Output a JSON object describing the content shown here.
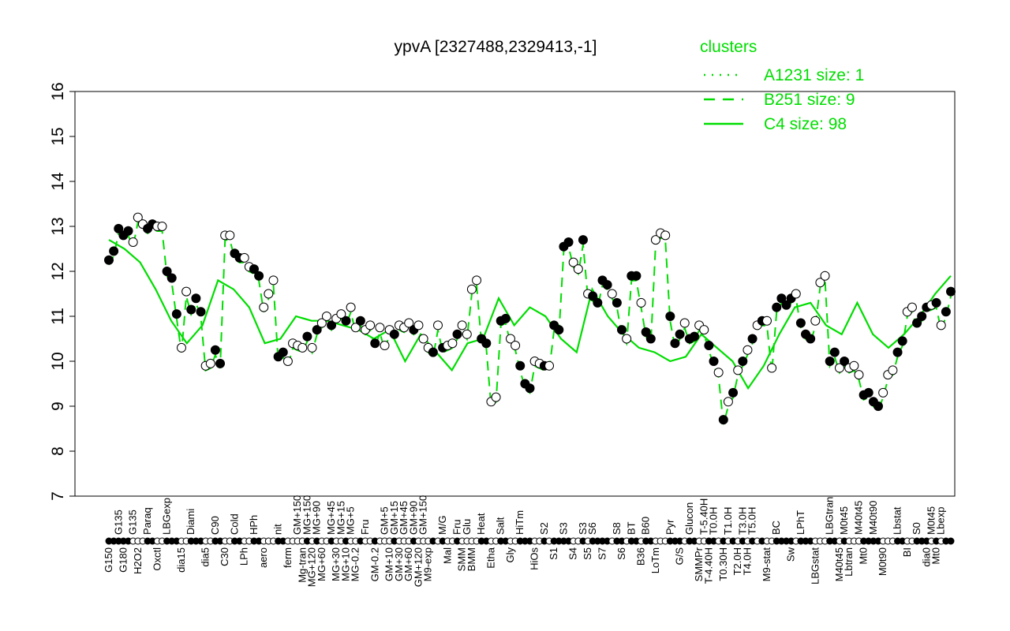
{
  "chart_data": {
    "type": "scatter",
    "title": "ypvA [2327488,2329413,-1]",
    "xlabel": "",
    "ylabel": "",
    "ylim": [
      7,
      16
    ],
    "yticks": [
      7,
      8,
      9,
      10,
      11,
      12,
      13,
      14,
      15,
      16
    ],
    "grid": false,
    "legend": {
      "title": "clusters",
      "placement": "top-right",
      "color": "#00dd00",
      "entries": [
        {
          "label": "A1231 size: 1",
          "style": "dotted"
        },
        {
          "label": "B251 size: 9",
          "style": "dashed"
        },
        {
          "label": "C4 size: 98",
          "style": "solid"
        }
      ]
    },
    "colors": {
      "points": "#000000",
      "lines": "#00dd00"
    },
    "points": [
      [
        "G150",
        12.25,
        0
      ],
      [
        "G150",
        12.45,
        0
      ],
      [
        "G135",
        12.95,
        0
      ],
      [
        "G180",
        12.8,
        0
      ],
      [
        "G180",
        12.9,
        0
      ],
      [
        "G135",
        12.65,
        1
      ],
      [
        "H2O2",
        13.2,
        1
      ],
      [
        "H2O2",
        13.05,
        1
      ],
      [
        "Paraq",
        12.95,
        0
      ],
      [
        "Paraq",
        13.05,
        0
      ],
      [
        "Oxctl",
        13.0,
        1
      ],
      [
        "Oxctl",
        13.0,
        1
      ],
      [
        "LBGexp",
        12.0,
        0
      ],
      [
        "LBGexp",
        11.85,
        0
      ],
      [
        "LBGexp",
        11.05,
        0
      ],
      [
        "dia15",
        10.3,
        1
      ],
      [
        "dia15",
        11.55,
        1
      ],
      [
        "Diami",
        11.15,
        0
      ],
      [
        "Diami",
        11.4,
        0
      ],
      [
        "Diami",
        11.1,
        0
      ],
      [
        "dia5",
        9.9,
        1
      ],
      [
        "dia5",
        9.95,
        1
      ],
      [
        "C90",
        10.25,
        0
      ],
      [
        "C90",
        9.95,
        0
      ],
      [
        "C30",
        12.8,
        1
      ],
      [
        "C30",
        12.8,
        1
      ],
      [
        "Cold",
        12.4,
        0
      ],
      [
        "Cold",
        12.3,
        0
      ],
      [
        "LPh",
        12.3,
        1
      ],
      [
        "LPh",
        12.1,
        1
      ],
      [
        "HPh",
        12.05,
        0
      ],
      [
        "HPh",
        11.9,
        0
      ],
      [
        "aero",
        11.2,
        1
      ],
      [
        "aero",
        11.5,
        1
      ],
      [
        "aero",
        11.8,
        1
      ],
      [
        "nit",
        10.1,
        0
      ],
      [
        "nit",
        10.2,
        0
      ],
      [
        "ferm",
        10.0,
        1
      ],
      [
        "ferm",
        10.4,
        1
      ],
      [
        "GM+150",
        10.35,
        1
      ],
      [
        "Mg-tran",
        10.3,
        1
      ],
      [
        "MG+150",
        10.55,
        0
      ],
      [
        "MG+120",
        10.3,
        1
      ],
      [
        "MG+90",
        10.7,
        0
      ],
      [
        "MG+60",
        10.85,
        1
      ],
      [
        "MG+60",
        11.0,
        1
      ],
      [
        "MG+45",
        10.8,
        0
      ],
      [
        "MG+30",
        10.95,
        1
      ],
      [
        "MG+15",
        11.05,
        1
      ],
      [
        "MG+10",
        10.9,
        0
      ],
      [
        "MG+5",
        11.2,
        1
      ],
      [
        "MG-0.2",
        10.75,
        1
      ],
      [
        "MG-0.2",
        10.9,
        0
      ],
      [
        "Fru",
        10.7,
        1
      ],
      [
        "Fru",
        10.8,
        1
      ],
      [
        "GM-0.2",
        10.4,
        0
      ],
      [
        "GM-0.2",
        10.75,
        1
      ],
      [
        "GM+5",
        10.35,
        1
      ],
      [
        "GM+10",
        10.7,
        1
      ],
      [
        "GM+15",
        10.6,
        0
      ],
      [
        "GM+30",
        10.8,
        1
      ],
      [
        "GM+45",
        10.75,
        1
      ],
      [
        "GM+60",
        10.85,
        1
      ],
      [
        "GM+90",
        10.7,
        0
      ],
      [
        "GM+120",
        10.8,
        1
      ],
      [
        "GM+150",
        10.5,
        1
      ],
      [
        "M9-exp",
        10.3,
        1
      ],
      [
        "M9-exp",
        10.2,
        0
      ],
      [
        "M9-exp",
        10.8,
        1
      ],
      [
        "M/G",
        10.3,
        0
      ],
      [
        "Mal",
        10.35,
        1
      ],
      [
        "Mal",
        10.4,
        1
      ],
      [
        "Fru",
        10.6,
        0
      ],
      [
        "SMM",
        10.8,
        1
      ],
      [
        "Glu",
        10.6,
        1
      ],
      [
        "BMM",
        11.6,
        1
      ],
      [
        "BMM",
        11.8,
        1
      ],
      [
        "Heat",
        10.5,
        0
      ],
      [
        "Heat",
        10.4,
        0
      ],
      [
        "Etha",
        9.1,
        1
      ],
      [
        "Etha",
        9.2,
        1
      ],
      [
        "Salt",
        10.9,
        0
      ],
      [
        "Salt",
        10.95,
        0
      ],
      [
        "Gly",
        10.5,
        1
      ],
      [
        "Gly",
        10.35,
        1
      ],
      [
        "HiTm",
        9.9,
        0
      ],
      [
        "HiTm",
        9.5,
        0
      ],
      [
        "HiTm",
        9.4,
        0
      ],
      [
        "HiOs",
        10.0,
        1
      ],
      [
        "HiOs",
        9.95,
        1
      ],
      [
        "S2",
        9.9,
        0
      ],
      [
        "S2",
        9.9,
        1
      ],
      [
        "S1",
        10.8,
        0
      ],
      [
        "S1",
        10.7,
        0
      ],
      [
        "S3",
        12.55,
        0
      ],
      [
        "S3",
        12.65,
        0
      ],
      [
        "S4",
        12.2,
        1
      ],
      [
        "S4",
        12.05,
        1
      ],
      [
        "S3",
        12.7,
        0
      ],
      [
        "S5",
        11.5,
        1
      ],
      [
        "S6",
        11.45,
        0
      ],
      [
        "S6",
        11.3,
        0
      ],
      [
        "S7",
        11.8,
        0
      ],
      [
        "S7",
        11.7,
        0
      ],
      [
        "S7",
        11.5,
        1
      ],
      [
        "S8",
        11.3,
        0
      ],
      [
        "S6",
        10.7,
        0
      ],
      [
        "S6",
        10.5,
        1
      ],
      [
        "BT",
        11.9,
        0
      ],
      [
        "BT",
        11.9,
        0
      ],
      [
        "B36",
        11.3,
        1
      ],
      [
        "B60",
        10.65,
        0
      ],
      [
        "B60",
        10.5,
        0
      ],
      [
        "LoTm",
        12.7,
        1
      ],
      [
        "LoTm",
        12.85,
        1
      ],
      [
        "LoTm",
        12.8,
        1
      ],
      [
        "Pyr",
        11.0,
        0
      ],
      [
        "Pyr",
        10.4,
        0
      ],
      [
        "G/S",
        10.6,
        0
      ],
      [
        "G/S",
        10.85,
        1
      ],
      [
        "Glucon",
        10.5,
        0
      ],
      [
        "Glucon",
        10.55,
        0
      ],
      [
        "SMMPr",
        10.8,
        1
      ],
      [
        "T-5.40H",
        10.7,
        1
      ],
      [
        "T-4.40H",
        10.35,
        0
      ],
      [
        "T0.0H",
        10.0,
        0
      ],
      [
        "T0.0H",
        9.75,
        1
      ],
      [
        "T0.30H",
        8.7,
        0
      ],
      [
        "T1.0H",
        9.1,
        1
      ],
      [
        "T1.0H",
        9.3,
        0
      ],
      [
        "T2.0H",
        9.8,
        1
      ],
      [
        "T3.0H",
        10.0,
        0
      ],
      [
        "T4.0H",
        10.25,
        1
      ],
      [
        "T5.0H",
        10.5,
        0
      ],
      [
        "T5.0H",
        10.8,
        1
      ],
      [
        "T5.0H",
        10.9,
        0
      ],
      [
        "M9-stat",
        10.9,
        1
      ],
      [
        "M9-stat",
        9.85,
        1
      ],
      [
        "BC",
        11.2,
        0
      ],
      [
        "BC",
        11.4,
        0
      ],
      [
        "BC",
        11.25,
        0
      ],
      [
        "Sw",
        11.4,
        0
      ],
      [
        "Sw",
        11.5,
        1
      ],
      [
        "LPhT",
        10.85,
        0
      ],
      [
        "LPhT",
        10.6,
        0
      ],
      [
        "LPhT",
        10.5,
        0
      ],
      [
        "LBGstat",
        10.9,
        1
      ],
      [
        "LBGstat",
        11.75,
        1
      ],
      [
        "LBGstat",
        11.9,
        1
      ],
      [
        "LBGtran",
        10.0,
        0
      ],
      [
        "LBGtran",
        10.2,
        0
      ],
      [
        "M40t45",
        9.85,
        1
      ],
      [
        "M0t45",
        10.0,
        0
      ],
      [
        "Lbtran",
        9.85,
        1
      ],
      [
        "Lbtran",
        9.9,
        1
      ],
      [
        "M40t45",
        9.7,
        1
      ],
      [
        "Mt0",
        9.25,
        0
      ],
      [
        "Mt0",
        9.3,
        0
      ],
      [
        "M40t90",
        9.1,
        0
      ],
      [
        "M40t90",
        9.0,
        0
      ],
      [
        "M0t90",
        9.3,
        1
      ],
      [
        "M0t90",
        9.7,
        1
      ],
      [
        "M0t90",
        9.8,
        1
      ],
      [
        "Lbstat",
        10.2,
        0
      ],
      [
        "Lbstat",
        10.45,
        0
      ],
      [
        "BI",
        11.1,
        1
      ],
      [
        "BI",
        11.2,
        1
      ],
      [
        "S0",
        10.85,
        0
      ],
      [
        "S0",
        11.0,
        0
      ],
      [
        "dia0",
        11.2,
        0
      ],
      [
        "M0t45",
        11.25,
        1
      ],
      [
        "Mt0",
        11.3,
        0
      ],
      [
        "Lbexp",
        10.8,
        1
      ],
      [
        "Lbexp",
        11.1,
        0
      ],
      [
        "Lbexp",
        11.55,
        0
      ]
    ],
    "series": [
      {
        "name": "B251 size: 9",
        "style": "dashed",
        "follows": "points"
      },
      {
        "name": "C4 size: 98",
        "style": "solid",
        "values": [
          12.7,
          12.5,
          12.2,
          11.6,
          10.9,
          10.4,
          10.8,
          11.8,
          11.6,
          11.2,
          10.4,
          10.5,
          11.0,
          10.9,
          10.9,
          10.8,
          10.7,
          10.5,
          10.7,
          10.0,
          10.6,
          10.2,
          9.8,
          10.4,
          10.5,
          11.4,
          10.8,
          11.2,
          11.0,
          10.5,
          10.2,
          11.6,
          11.0,
          10.6,
          10.3,
          10.2,
          10.0,
          10.1,
          10.6,
          10.3,
          10.0,
          9.4,
          9.9,
          10.6,
          11.2,
          11.3,
          10.8,
          10.6,
          11.3,
          10.6,
          10.3,
          10.6,
          11.0,
          11.5,
          11.9
        ]
      }
    ]
  }
}
